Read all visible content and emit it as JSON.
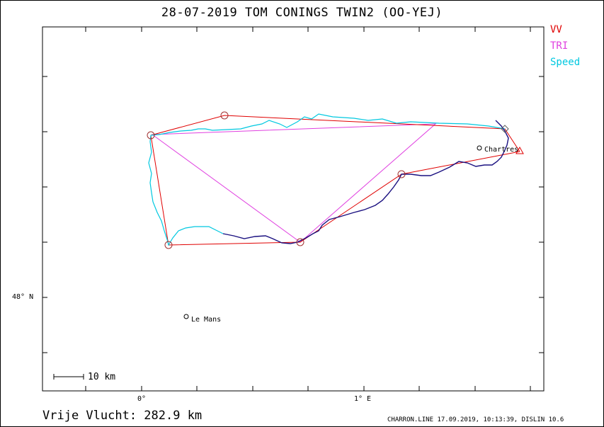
{
  "title": "28-07-2019   TOM CONINGS   TWIN2 (OO-YEJ)",
  "legend": {
    "vv": "VV",
    "tri": "TRI",
    "speed": "Speed"
  },
  "colors": {
    "vv": "#e00000",
    "tri": "#e040e0",
    "speed": "#00c8e0",
    "track": "#1a1080",
    "axes": "#000000"
  },
  "axes": {
    "lat_label": "48° N",
    "lon_labels": [
      "0°",
      "1° E"
    ]
  },
  "places": [
    {
      "name": "Chartres"
    },
    {
      "name": "Le Mans"
    }
  ],
  "scale_bar": {
    "label": "10 km"
  },
  "footer": {
    "distance": "Vrije Vlucht:  282.9 km",
    "program": "CHARRON.LINE 17.09.2019, 10:13:39, DISLIN 10.6"
  }
}
